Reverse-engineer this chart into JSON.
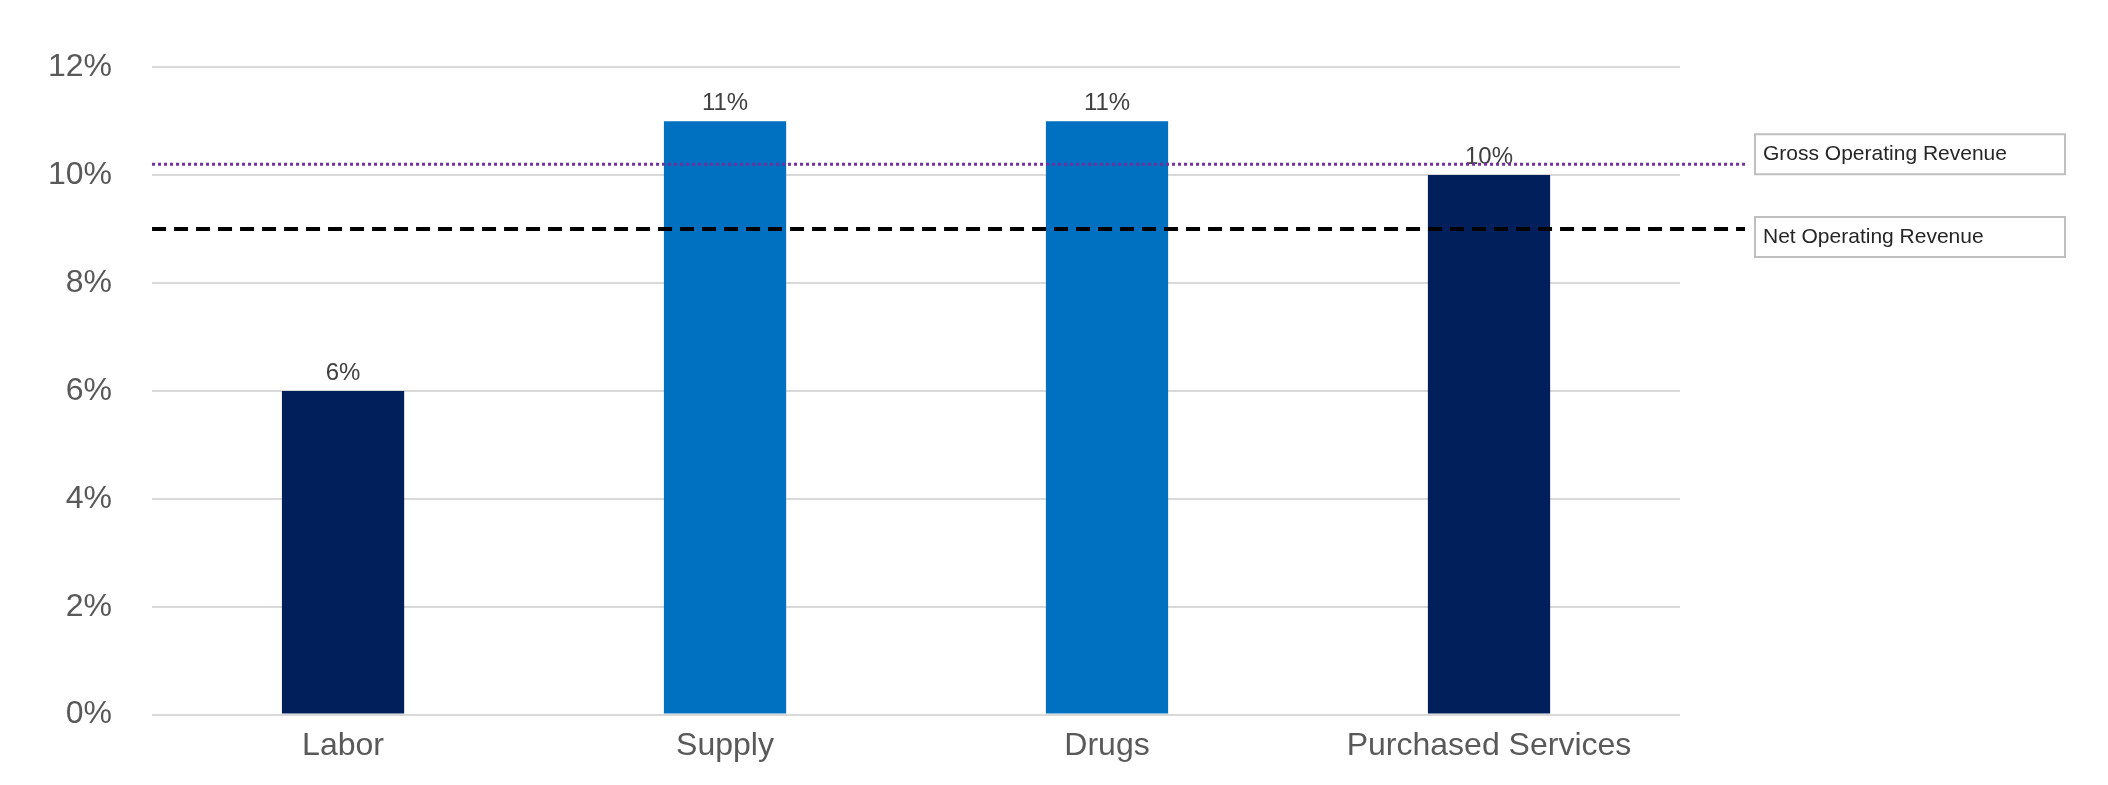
{
  "chart_data": {
    "type": "bar",
    "categories": [
      "Labor",
      "Supply",
      "Drugs",
      "Purchased Services"
    ],
    "values": [
      6,
      11,
      11,
      10
    ],
    "colors": [
      "#001f5b",
      "#0070c0",
      "#0070c0",
      "#001f5b"
    ],
    "ylim": [
      0,
      12
    ],
    "yticks": [
      {
        "value": 0,
        "label": "0%"
      },
      {
        "value": 2,
        "label": "2%"
      },
      {
        "value": 4,
        "label": "4%"
      },
      {
        "value": 6,
        "label": "6%"
      },
      {
        "value": 8,
        "label": "8%"
      },
      {
        "value": 10,
        "label": "10%"
      },
      {
        "value": 12,
        "label": "12%"
      }
    ],
    "value_labels": [
      "6%",
      "11%",
      "11%",
      "10%"
    ],
    "ref_lines": [
      {
        "axis": "y",
        "value": 10.2,
        "label": "Gross Operating Revenue",
        "color": "#7030a0",
        "line_style": "dotted"
      },
      {
        "axis": "y",
        "value": 9,
        "label": "Net Operating Revenue",
        "color": "#000000",
        "line_style": "dashed"
      }
    ],
    "grid": "y",
    "legend": false
  }
}
